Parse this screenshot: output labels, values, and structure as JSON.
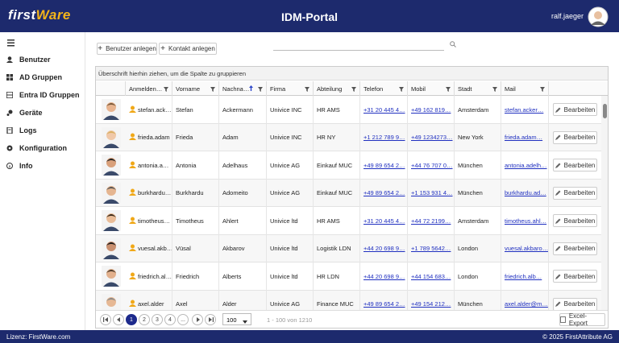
{
  "header": {
    "logo_first": "first",
    "logo_second": "Ware",
    "title": "IDM-Portal",
    "user": "ralf.jaeger"
  },
  "sidebar": {
    "items": [
      "Benutzer",
      "AD Gruppen",
      "Entra ID Gruppen",
      "Geräte",
      "Logs",
      "Konfiguration",
      "Info"
    ]
  },
  "toolbar": {
    "buttons": [
      "Benutzer anlegen",
      "Kontakt anlegen"
    ]
  },
  "table": {
    "group_hint": "Überschrift hierhin ziehen, um die Spalte zu gruppieren",
    "columns": [
      "Anmelden…",
      "Vorname",
      "Nachna…",
      "Firma",
      "Abteilung",
      "Telefon",
      "Mobil",
      "Stadt",
      "Mail"
    ],
    "action_label": "Bearbeiten",
    "rows": [
      [
        "stefan.ack…",
        "Stefan",
        "Ackermann",
        "Univice INC",
        "HR AMS",
        "+31 20 445 4…",
        "+49 162 819…",
        "Amsterdam",
        "stefan.acker…"
      ],
      [
        "frieda.adam",
        "Frieda",
        "Adam",
        "Univice INC",
        "HR NY",
        "+1 212 789 9…",
        "+49 1234273…",
        "New York",
        "frieda.adam…"
      ],
      [
        "antonia.a…",
        "Antonia",
        "Adelhaus",
        "Univice AG",
        "Einkauf MUC",
        "+49 89 654 2…",
        "+44 76 707 0…",
        "München",
        "antonia.adelh…"
      ],
      [
        "burkhardu…",
        "Burkhardu",
        "Adomeito",
        "Univice AG",
        "Einkauf MUC",
        "+49 89 654 2…",
        "+1 153 931 4…",
        "München",
        "burkhardu.ad…"
      ],
      [
        "timotheus…",
        "Timotheus",
        "Ahlert",
        "Univice ltd",
        "HR AMS",
        "+31 20 445 4…",
        "+44 72 2199…",
        "Amsterdam",
        "timotheus.ahl…"
      ],
      [
        "vuesal.akb…",
        "Vüsal",
        "Akbarov",
        "Univice ltd",
        "Logistik LDN",
        "+44 20 698 9…",
        "+1 789 5642…",
        "London",
        "vuesal.akbaro…"
      ],
      [
        "friedrich.al…",
        "Friedrich",
        "Alberts",
        "Univice ltd",
        "HR LDN",
        "+44 20 698 9…",
        "+44 154 683…",
        "London",
        "friedrich.alb…"
      ],
      [
        "axel.alder",
        "Axel",
        "Alder",
        "Univice AG",
        "Finance MUC",
        "+49 89 654 2…",
        "+49 154 212…",
        "München",
        "axel.alder@m…"
      ]
    ]
  },
  "pager": {
    "pages": [
      "1",
      "2",
      "3",
      "4",
      "..."
    ],
    "page_size": "100",
    "info": "1 - 100 von 1210",
    "export": "Excel-Export"
  },
  "footer": {
    "license": "Lizenz: FirstWare.com",
    "copyright": "© 2025 FirstAttribute AG"
  }
}
